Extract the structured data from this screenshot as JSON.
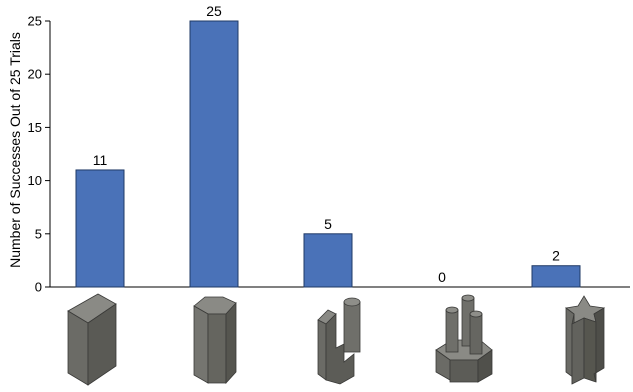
{
  "chart_data": {
    "type": "bar",
    "ylabel": "Number of Successes Out of 25 Trials",
    "xlabel": "",
    "ylim": [
      0,
      25
    ],
    "yticks": [
      0,
      5,
      10,
      15,
      20,
      25
    ],
    "categories": [
      "rectangular prism",
      "hexagonal prism",
      "notched block",
      "three pegs on base",
      "star prism"
    ],
    "values": [
      11,
      25,
      5,
      0,
      2
    ],
    "data_labels": [
      "11",
      "25",
      "5",
      "0",
      "2"
    ],
    "bar_color": "#4a72b8",
    "bar_edge_color": "#1f3a66",
    "object_color": "#6f6f6a",
    "grid": false,
    "legend": "none"
  }
}
